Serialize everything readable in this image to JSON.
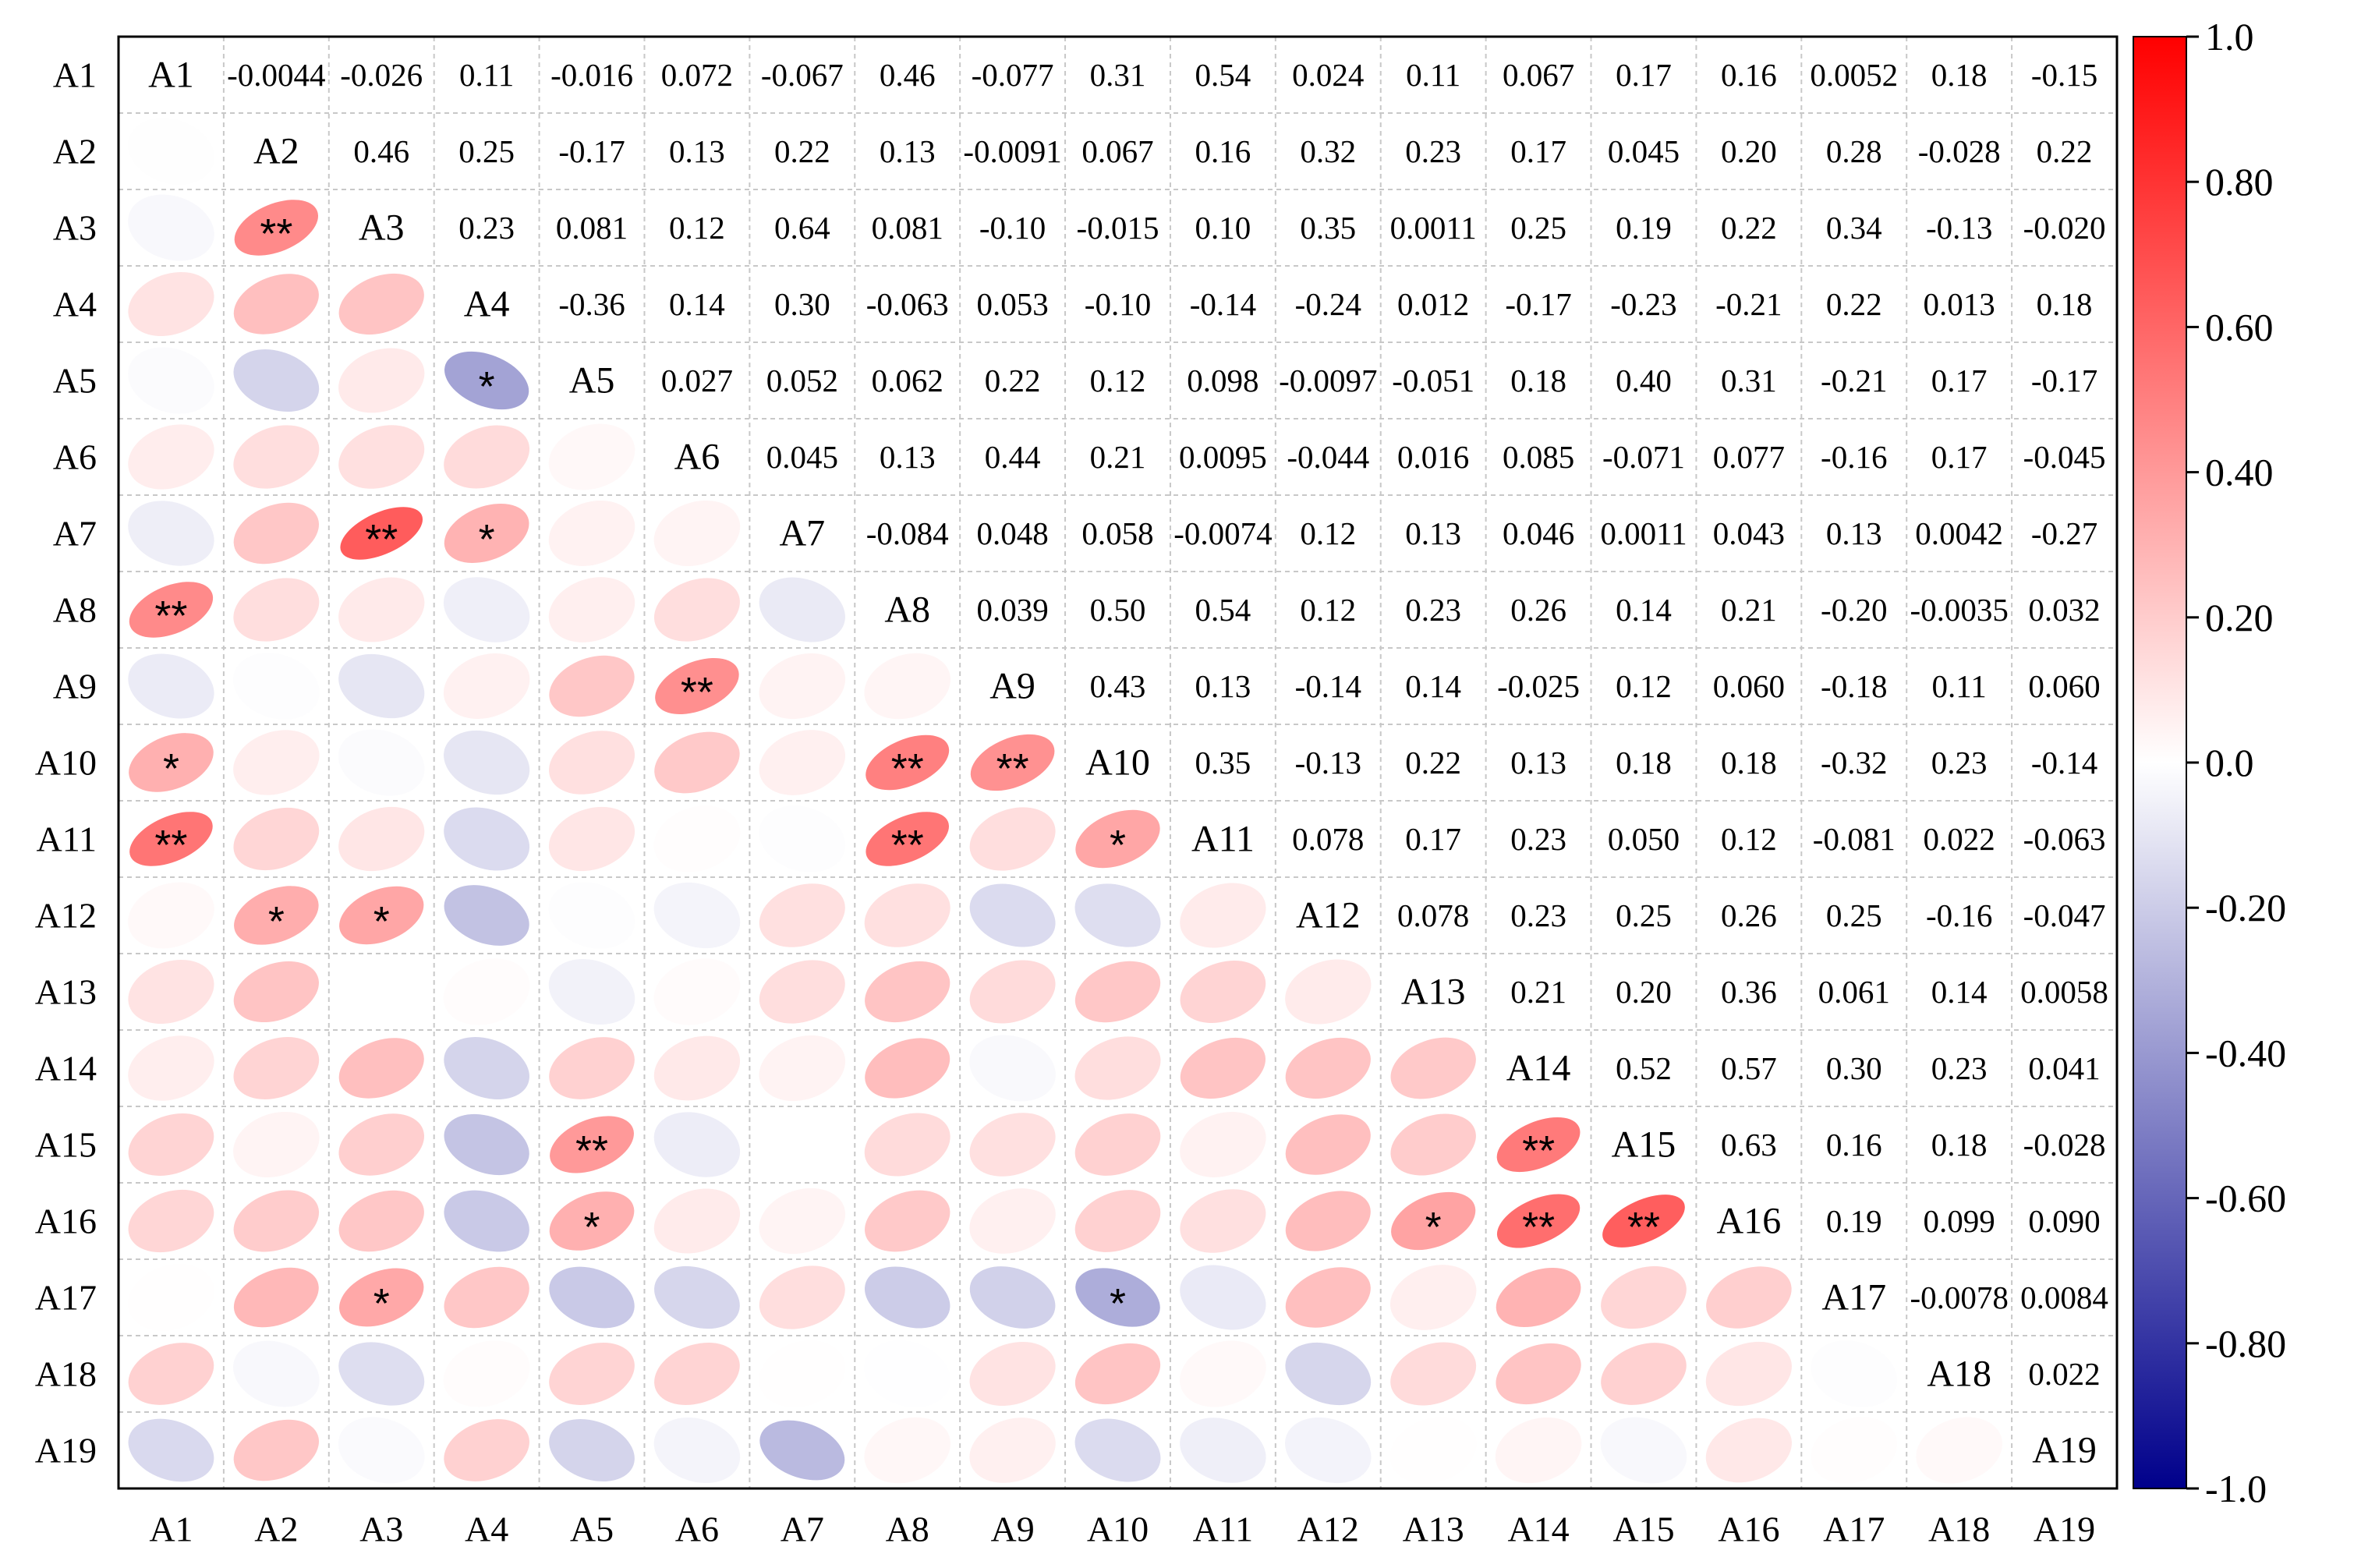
{
  "chart_data": {
    "type": "heatmap",
    "subtype": "correlation-matrix-ellipse",
    "labels": [
      "A1",
      "A2",
      "A3",
      "A4",
      "A5",
      "A6",
      "A7",
      "A8",
      "A9",
      "A10",
      "A11",
      "A12",
      "A13",
      "A14",
      "A15",
      "A16",
      "A17",
      "A18",
      "A19"
    ],
    "colorbar": {
      "range": [
        -1.0,
        1.0
      ],
      "ticks": [
        "1.0",
        "0.80",
        "0.60",
        "0.40",
        "0.20",
        "0.0",
        "-0.20",
        "-0.40",
        "-0.60",
        "-0.80",
        "-1.0"
      ],
      "tick_values": [
        1.0,
        0.8,
        0.6,
        0.4,
        0.2,
        0.0,
        -0.2,
        -0.4,
        -0.6,
        -0.8,
        -1.0
      ],
      "low_color": "#00008b",
      "mid_color": "#ffffff",
      "high_color": "#ff0000"
    },
    "upper_text": [
      [
        "",
        "-0.0044",
        "-0.026",
        "0.11",
        "-0.016",
        "0.072",
        "-0.067",
        "0.46",
        "-0.077",
        "0.31",
        "0.54",
        "0.024",
        "0.11",
        "0.067",
        "0.17",
        "0.16",
        "0.0052",
        "0.18",
        "-0.15"
      ],
      [
        "",
        "",
        "0.46",
        "0.25",
        "-0.17",
        "0.13",
        "0.22",
        "0.13",
        "-0.0091",
        "0.067",
        "0.16",
        "0.32",
        "0.23",
        "0.17",
        "0.045",
        "0.20",
        "0.28",
        "-0.028",
        "0.22"
      ],
      [
        "",
        "",
        "",
        "0.23",
        "0.081",
        "0.12",
        "0.64",
        "0.081",
        "-0.10",
        "-0.015",
        "0.10",
        "0.35",
        "0.0011",
        "0.25",
        "0.19",
        "0.22",
        "0.34",
        "-0.13",
        "-0.020"
      ],
      [
        "",
        "",
        "",
        "",
        "-0.36",
        "0.14",
        "0.30",
        "-0.063",
        "0.053",
        "-0.10",
        "-0.14",
        "-0.24",
        "0.012",
        "-0.17",
        "-0.23",
        "-0.21",
        "0.22",
        "0.013",
        "0.18"
      ],
      [
        "",
        "",
        "",
        "",
        "",
        "0.027",
        "0.052",
        "0.062",
        "0.22",
        "0.12",
        "0.098",
        "-0.0097",
        "-0.051",
        "0.18",
        "0.40",
        "0.31",
        "-0.21",
        "0.17",
        "-0.17"
      ],
      [
        "",
        "",
        "",
        "",
        "",
        "",
        "0.045",
        "0.13",
        "0.44",
        "0.21",
        "0.0095",
        "-0.044",
        "0.016",
        "0.085",
        "-0.071",
        "0.077",
        "-0.16",
        "0.17",
        "-0.045"
      ],
      [
        "",
        "",
        "",
        "",
        "",
        "",
        "",
        "-0.084",
        "0.048",
        "0.058",
        "-0.0074",
        "0.12",
        "0.13",
        "0.046",
        "0.0011",
        "0.043",
        "0.13",
        "0.0042",
        "-0.27"
      ],
      [
        "",
        "",
        "",
        "",
        "",
        "",
        "",
        "",
        "0.039",
        "0.50",
        "0.54",
        "0.12",
        "0.23",
        "0.26",
        "0.14",
        "0.21",
        "-0.20",
        "-0.0035",
        "0.032"
      ],
      [
        "",
        "",
        "",
        "",
        "",
        "",
        "",
        "",
        "",
        "0.43",
        "0.13",
        "-0.14",
        "0.14",
        "-0.025",
        "0.12",
        "0.060",
        "-0.18",
        "0.11",
        "0.060"
      ],
      [
        "",
        "",
        "",
        "",
        "",
        "",
        "",
        "",
        "",
        "",
        "0.35",
        "-0.13",
        "0.22",
        "0.13",
        "0.18",
        "0.18",
        "-0.32",
        "0.23",
        "-0.14"
      ],
      [
        "",
        "",
        "",
        "",
        "",
        "",
        "",
        "",
        "",
        "",
        "",
        "0.078",
        "0.17",
        "0.23",
        "0.050",
        "0.12",
        "-0.081",
        "0.022",
        "-0.063"
      ],
      [
        "",
        "",
        "",
        "",
        "",
        "",
        "",
        "",
        "",
        "",
        "",
        "",
        "0.078",
        "0.23",
        "0.25",
        "0.26",
        "0.25",
        "-0.16",
        "-0.047"
      ],
      [
        "",
        "",
        "",
        "",
        "",
        "",
        "",
        "",
        "",
        "",
        "",
        "",
        "",
        "0.21",
        "0.20",
        "0.36",
        "0.061",
        "0.14",
        "0.0058"
      ],
      [
        "",
        "",
        "",
        "",
        "",
        "",
        "",
        "",
        "",
        "",
        "",
        "",
        "",
        "",
        "0.52",
        "0.57",
        "0.30",
        "0.23",
        "0.041"
      ],
      [
        "",
        "",
        "",
        "",
        "",
        "",
        "",
        "",
        "",
        "",
        "",
        "",
        "",
        "",
        "",
        "0.63",
        "0.16",
        "0.18",
        "-0.028"
      ],
      [
        "",
        "",
        "",
        "",
        "",
        "",
        "",
        "",
        "",
        "",
        "",
        "",
        "",
        "",
        "",
        "",
        "0.19",
        "0.099",
        "0.090"
      ],
      [
        "",
        "",
        "",
        "",
        "",
        "",
        "",
        "",
        "",
        "",
        "",
        "",
        "",
        "",
        "",
        "",
        "",
        "-0.0078",
        "0.0084"
      ],
      [
        "",
        "",
        "",
        "",
        "",
        "",
        "",
        "",
        "",
        "",
        "",
        "",
        "",
        "",
        "",
        "",
        "",
        "",
        "0.022"
      ],
      [
        "",
        "",
        "",
        "",
        "",
        "",
        "",
        "",
        "",
        "",
        "",
        "",
        "",
        "",
        "",
        "",
        "",
        "",
        ""
      ]
    ],
    "significance": [
      [
        "",
        "",
        "",
        "",
        "",
        "",
        "",
        "",
        "",
        "",
        "",
        "",
        "",
        "",
        "",
        "",
        "",
        "",
        ""
      ],
      [
        "",
        "",
        "",
        "",
        "",
        "",
        "",
        "",
        "",
        "",
        "",
        "",
        "",
        "",
        "",
        "",
        "",
        "",
        ""
      ],
      [
        "",
        "**",
        "",
        "",
        "",
        "",
        "",
        "",
        "",
        "",
        "",
        "",
        "",
        "",
        "",
        "",
        "",
        "",
        ""
      ],
      [
        "",
        "",
        "",
        "",
        "",
        "",
        "",
        "",
        "",
        "",
        "",
        "",
        "",
        "",
        "",
        "",
        "",
        "",
        ""
      ],
      [
        "",
        "",
        "",
        "*",
        "",
        "",
        "",
        "",
        "",
        "",
        "",
        "",
        "",
        "",
        "",
        "",
        "",
        "",
        ""
      ],
      [
        "",
        "",
        "",
        "",
        "",
        "",
        "",
        "",
        "",
        "",
        "",
        "",
        "",
        "",
        "",
        "",
        "",
        "",
        ""
      ],
      [
        "",
        "",
        "**",
        "*",
        "",
        "",
        "",
        "",
        "",
        "",
        "",
        "",
        "",
        "",
        "",
        "",
        "",
        "",
        ""
      ],
      [
        "**",
        "",
        "",
        "",
        "",
        "",
        "",
        "",
        "",
        "",
        "",
        "",
        "",
        "",
        "",
        "",
        "",
        "",
        ""
      ],
      [
        "",
        "",
        "",
        "",
        "",
        "**",
        "",
        "",
        "",
        "",
        "",
        "",
        "",
        "",
        "",
        "",
        "",
        "",
        ""
      ],
      [
        "*",
        "",
        "",
        "",
        "",
        "",
        "",
        "**",
        "**",
        "",
        "",
        "",
        "",
        "",
        "",
        "",
        "",
        "",
        ""
      ],
      [
        "**",
        "",
        "",
        "",
        "",
        "",
        "",
        "**",
        "",
        "*",
        "",
        "",
        "",
        "",
        "",
        "",
        "",
        "",
        ""
      ],
      [
        "",
        "*",
        "*",
        "",
        "",
        "",
        "",
        "",
        "",
        "",
        "",
        "",
        "",
        "",
        "",
        "",
        "",
        "",
        ""
      ],
      [
        "",
        "",
        "",
        "",
        "",
        "",
        "",
        "",
        "",
        "",
        "",
        "",
        "",
        "",
        "",
        "",
        "",
        "",
        ""
      ],
      [
        "",
        "",
        "",
        "",
        "",
        "",
        "",
        "",
        "",
        "",
        "",
        "",
        "",
        "",
        "",
        "",
        "",
        "",
        ""
      ],
      [
        "",
        "",
        "",
        "",
        "**",
        "",
        "",
        "",
        "",
        "",
        "",
        "",
        "",
        "**",
        "",
        "",
        "",
        "",
        ""
      ],
      [
        "",
        "",
        "",
        "",
        "*",
        "",
        "",
        "",
        "",
        "",
        "",
        "",
        "*",
        "**",
        "**",
        "",
        "",
        "",
        ""
      ],
      [
        "",
        "",
        "*",
        "",
        "",
        "",
        "",
        "",
        "",
        "*",
        "",
        "",
        "",
        "",
        "",
        "",
        "",
        "",
        ""
      ],
      [
        "",
        "",
        "",
        "",
        "",
        "",
        "",
        "",
        "",
        "",
        "",
        "",
        "",
        "",
        "",
        "",
        "",
        "",
        ""
      ],
      [
        "",
        "",
        "",
        "",
        "",
        "",
        "",
        "",
        "",
        "",
        "",
        "",
        "",
        "",
        "",
        "",
        "",
        "",
        ""
      ]
    ]
  }
}
